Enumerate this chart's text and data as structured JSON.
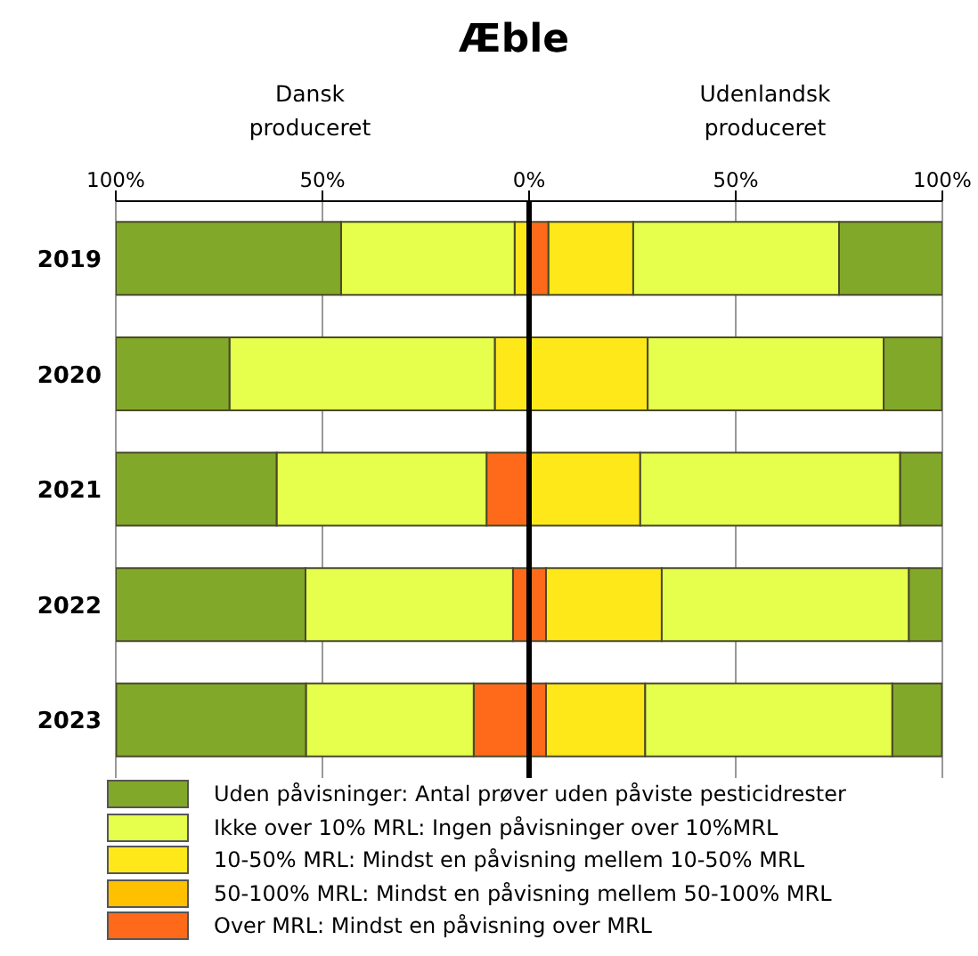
{
  "chart_data": {
    "type": "bar",
    "orientation": "horizontal",
    "stacked": true,
    "title": "Æble",
    "annotations": [
      "Dansk produceret",
      "Udenlandsk produceret"
    ],
    "categories": [
      "2019",
      "2020",
      "2021",
      "2022",
      "2023"
    ],
    "series": [
      {
        "name": "Over MRL:  Mindst en påvisning over MRL",
        "color": "#ff6a1a",
        "values": [
          4.7,
          null,
          null,
          4.1,
          4.1
        ]
      },
      {
        "name": "50-100% MRL: Mindst en påvisning mellem 50-100% MRL",
        "color": "#ffc000",
        "values": [
          null,
          null,
          null,
          null,
          null
        ]
      },
      {
        "name": "10-50% MRL: Mindst en påvisning mellem 10-50% MRL",
        "color": "#ffe81a",
        "values": [
          20.5,
          28.7,
          26.9,
          28,
          24
        ]
      },
      {
        "name": "Ikke over 10% MRL: Ingen påvisninger over 10%MRL",
        "color": "#e6ff4d",
        "values": [
          49.8,
          57.1,
          62.9,
          59.8,
          59.8
        ]
      },
      {
        "name": "Uden påvisninger: Antal prøver uden påviste pesticidrester",
        "color": "#82a82a",
        "values": [
          25,
          14.1,
          10.2,
          8.1,
          12
        ]
      },
      {
        "color": "#ff6a1a",
        "values": [
          null,
          null,
          -10.3,
          -3.9,
          -13.4
        ]
      },
      {
        "color": "#ffc000",
        "values": [
          null,
          null,
          null,
          null,
          null
        ]
      },
      {
        "color": "#ffe81a",
        "values": [
          -3.5,
          -8.3,
          null,
          null,
          null
        ]
      },
      {
        "color": "#e6ff4d",
        "values": [
          -42,
          -64.2,
          -50.8,
          -50.2,
          -40.6
        ]
      },
      {
        "color": "#82a82a",
        "values": [
          -54.5,
          -27.5,
          -38.9,
          -45.9,
          -45.9
        ]
      }
    ],
    "xlim": [
      -100,
      100
    ],
    "xticks": [
      {
        "value": -100,
        "label": "100%"
      },
      {
        "value": -50,
        "label": "50%"
      },
      {
        "value": 0,
        "label": "0%"
      },
      {
        "value": 50,
        "label": "50%"
      },
      {
        "value": 100,
        "label": "100%"
      }
    ],
    "ref_lines": [
      {
        "axis": "x",
        "value": 0,
        "color": "#000000"
      }
    ],
    "grid": "x",
    "legend": "bottom"
  }
}
